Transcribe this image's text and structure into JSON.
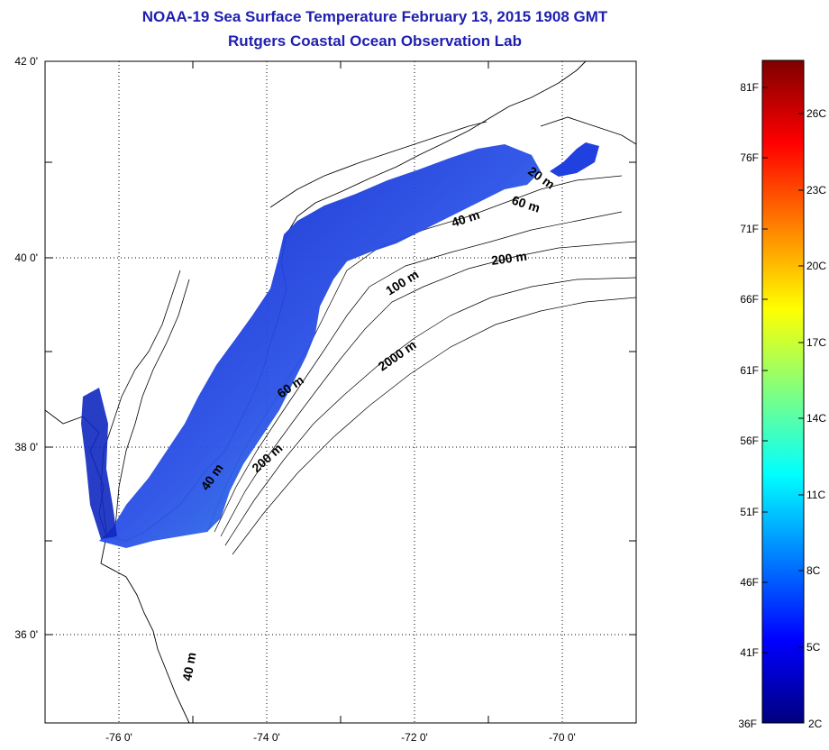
{
  "title": "NOAA-19 Sea Surface Temperature February 13, 2015 1908 GMT",
  "subtitle": "Rutgers Coastal Ocean Observation Lab",
  "map": {
    "lat_labels": [
      "42 0'",
      "40 0'",
      "38 0'",
      "36 0'"
    ],
    "lon_labels": [
      "-76 0'",
      "-74 0'",
      "-72 0'",
      "-70 0'"
    ],
    "contour_labels": [
      "20 m",
      "60 m",
      "40 m",
      "200 m",
      "100 m",
      "2000 m",
      "60 m",
      "40 m",
      "200 m",
      "40 m"
    ],
    "land_color": "#ffffff",
    "outline_color": "#000000"
  },
  "colorbar": {
    "fahrenheit": [
      "81F",
      "76F",
      "71F",
      "66F",
      "61F",
      "56F",
      "51F",
      "46F",
      "41F",
      "36F"
    ],
    "celsius": [
      "26C",
      "23C",
      "20C",
      "17C",
      "14C",
      "11C",
      "8C",
      "5C",
      "2C"
    ],
    "colors": [
      "#7f0000",
      "#ff0000",
      "#ff8000",
      "#ffff00",
      "#80ff80",
      "#00ffff",
      "#0080ff",
      "#0000ff",
      "#00007f"
    ]
  }
}
